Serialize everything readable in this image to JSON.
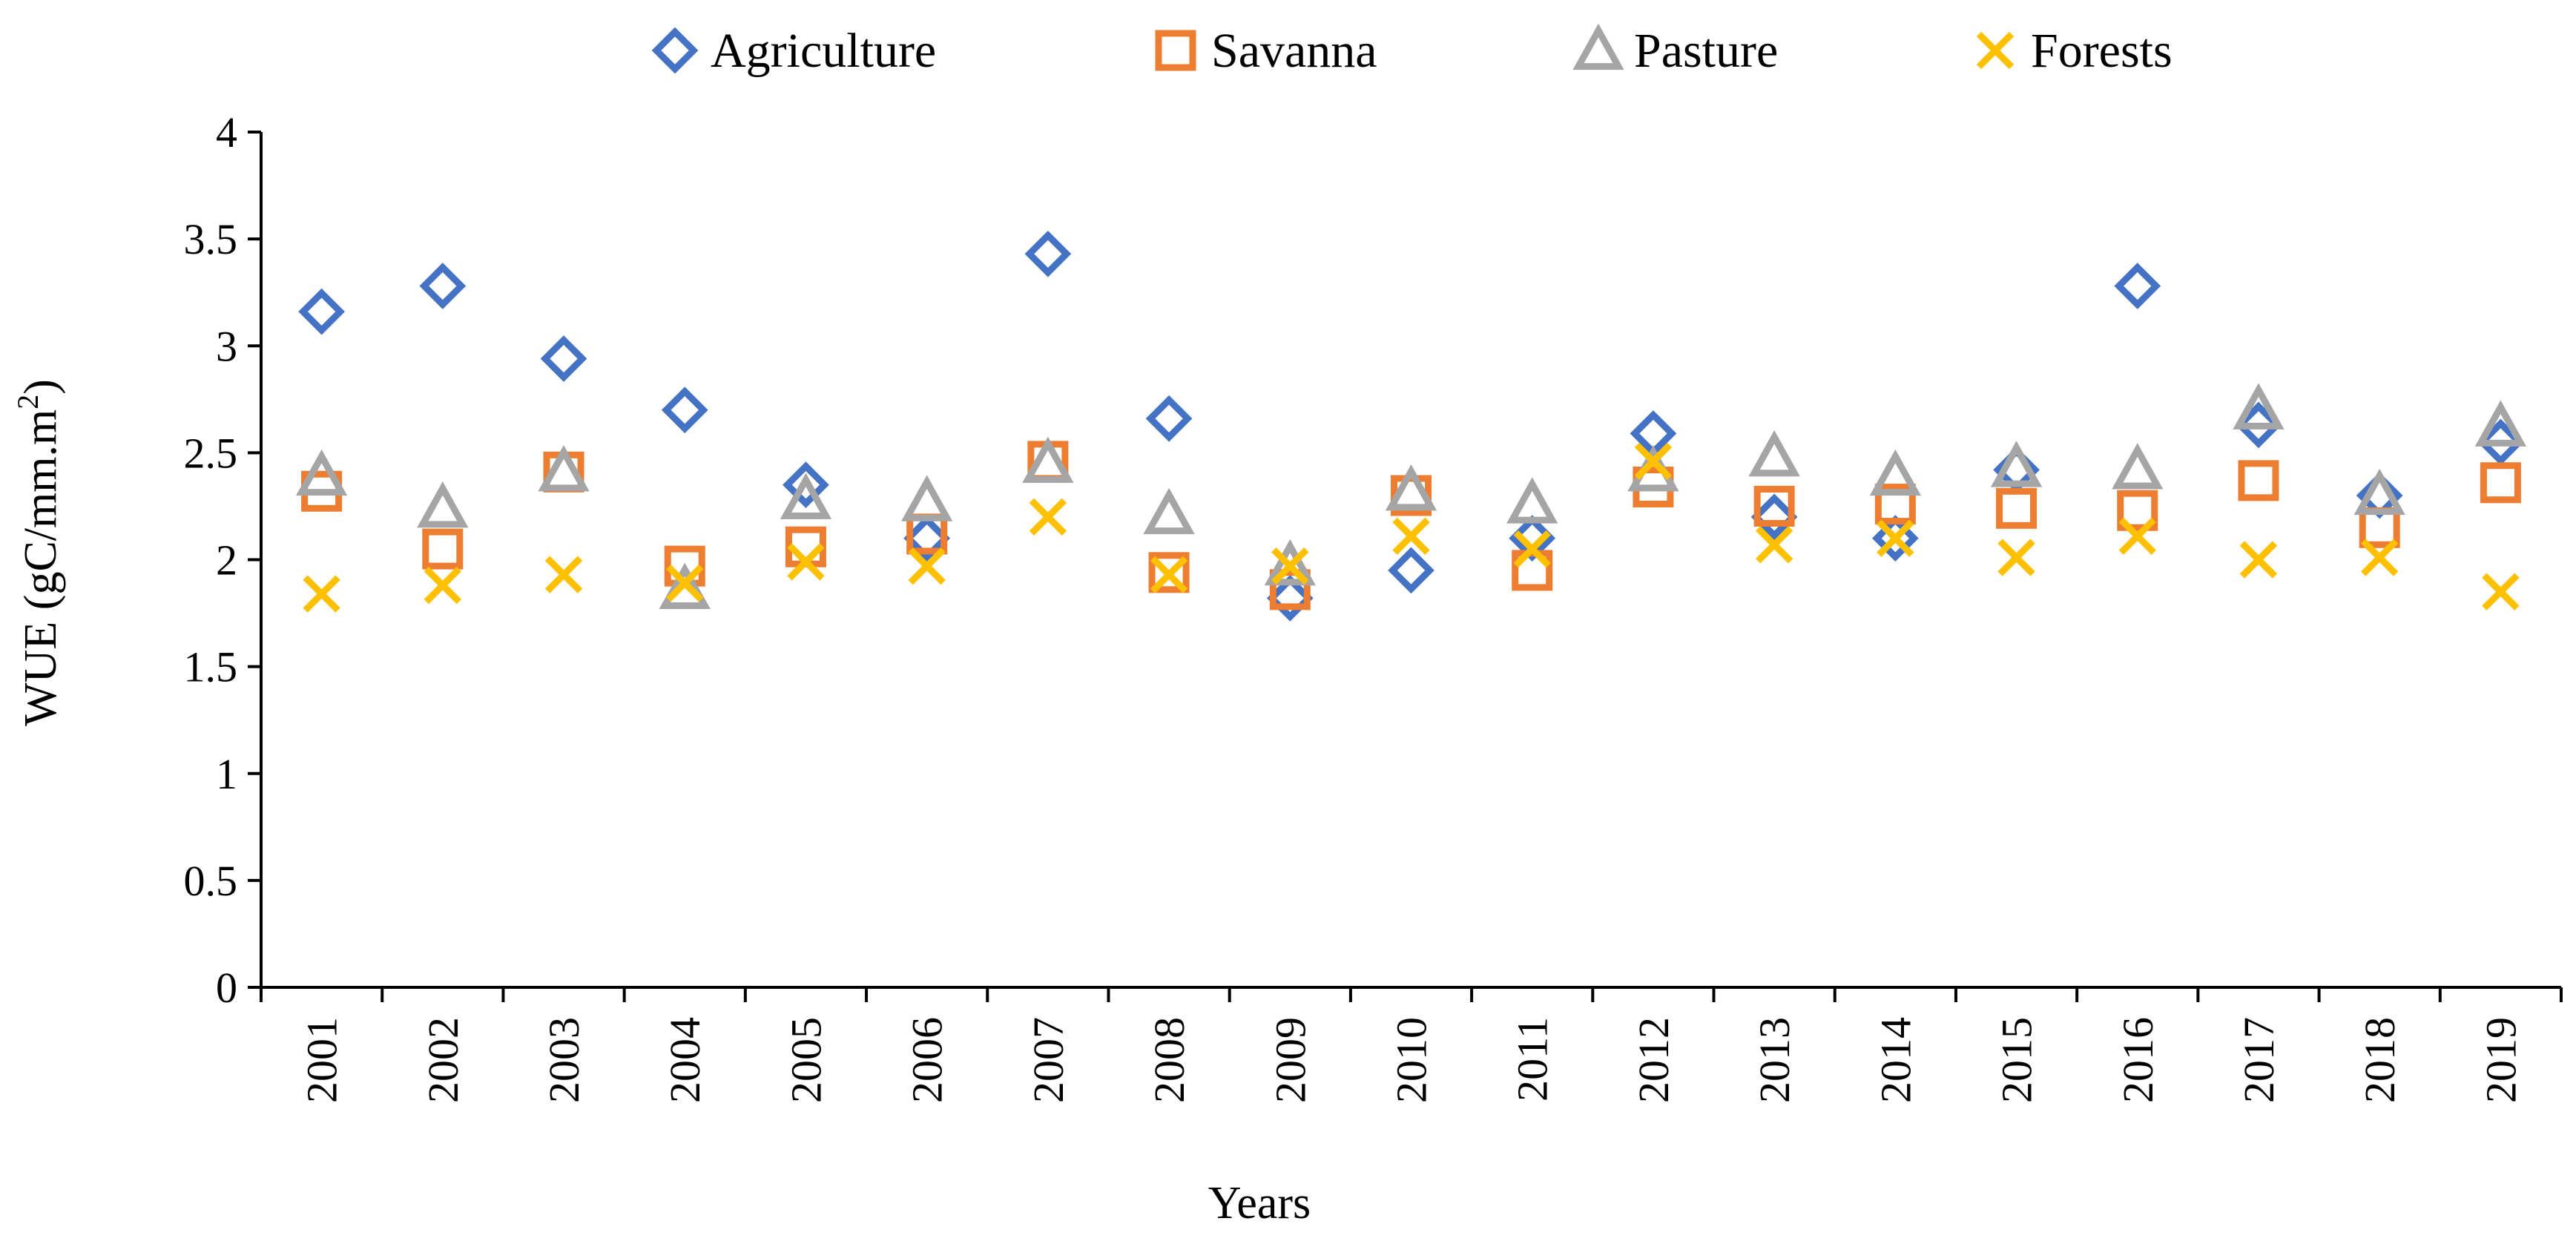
{
  "chart_data": {
    "type": "scatter",
    "title": "",
    "xlabel": "Years",
    "ylabel": "WUE (gC/mm.m",
    "ylabel_superscript": "2",
    "ylabel_suffix": ")",
    "ylim": [
      0,
      4
    ],
    "y_ticks": [
      "0",
      "0.5",
      "1",
      "1.5",
      "2",
      "2.5",
      "3",
      "3.5",
      "4"
    ],
    "categories": [
      "2001",
      "2002",
      "2003",
      "2004",
      "2005",
      "2006",
      "2007",
      "2008",
      "2009",
      "2010",
      "2011",
      "2012",
      "2013",
      "2014",
      "2015",
      "2016",
      "2017",
      "2018",
      "2019"
    ],
    "legend_position": "top",
    "grid": false,
    "series": [
      {
        "name": "Agriculture",
        "marker": "diamond",
        "color": "#4472C4",
        "values": [
          3.16,
          3.28,
          2.94,
          2.7,
          2.35,
          2.1,
          3.43,
          2.66,
          1.82,
          1.95,
          2.1,
          2.59,
          2.2,
          2.1,
          2.42,
          3.28,
          2.63,
          2.3,
          2.55
        ]
      },
      {
        "name": "Savanna",
        "marker": "square",
        "color": "#ED7D31",
        "values": [
          2.32,
          2.05,
          2.41,
          1.97,
          2.06,
          2.12,
          2.46,
          1.94,
          1.86,
          2.3,
          1.95,
          2.34,
          2.25,
          2.26,
          2.24,
          2.23,
          2.37,
          2.15,
          2.36
        ]
      },
      {
        "name": "Pasture",
        "marker": "triangle",
        "color": "#A5A5A5",
        "values": [
          2.39,
          2.24,
          2.41,
          1.86,
          2.28,
          2.27,
          2.45,
          2.21,
          1.97,
          2.32,
          2.26,
          2.41,
          2.48,
          2.39,
          2.43,
          2.42,
          2.7,
          2.3,
          2.62
        ]
      },
      {
        "name": "Forests",
        "marker": "cross",
        "color": "#FFC000",
        "values": [
          1.84,
          1.88,
          1.93,
          1.89,
          1.99,
          1.97,
          2.2,
          1.93,
          1.97,
          2.11,
          2.05,
          2.46,
          2.07,
          2.1,
          2.01,
          2.11,
          2.0,
          2.01,
          1.85
        ]
      }
    ]
  }
}
